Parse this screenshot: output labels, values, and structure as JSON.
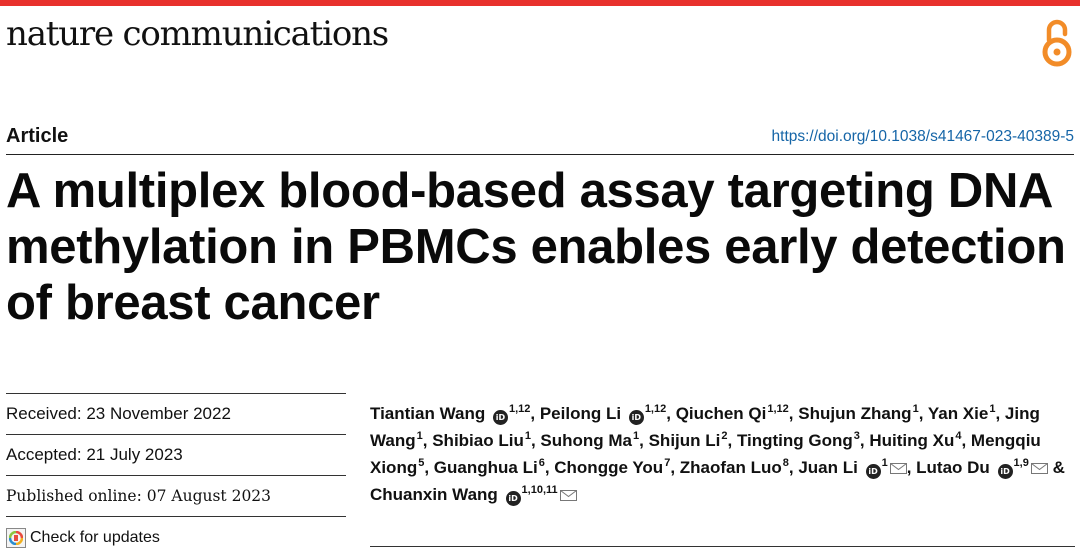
{
  "journal": {
    "name": "nature communications"
  },
  "article": {
    "type_label": "Article",
    "doi": "https://doi.org/10.1038/s41467-023-40389-5",
    "title": "A multiplex blood-based assay targeting DNA methylation in PBMCs enables early detection of breast cancer"
  },
  "dates": {
    "received": "Received: 23 November 2022",
    "accepted": "Accepted: 21 July 2023",
    "published": "Published online: 07 August 2023"
  },
  "check_updates": {
    "label": "Check for updates"
  },
  "icons": {
    "open_access": "open-access-icon",
    "orcid": "orcid-icon",
    "mail": "mail-icon"
  },
  "colors": {
    "accent_bar": "#e8312c",
    "open_access": "#f28c28",
    "doi_link": "#1565a7"
  },
  "authors": [
    {
      "name": "Tiantian Wang",
      "orcid": true,
      "sup": "1,12",
      "sep": ", "
    },
    {
      "name": "Peilong Li",
      "orcid": true,
      "sup": "1,12",
      "sep": ", "
    },
    {
      "name": "Qiuchen Qi",
      "orcid": false,
      "sup": "1,12",
      "sep": ", "
    },
    {
      "name": "Shujun Zhang",
      "orcid": false,
      "sup": "1",
      "sep": ", "
    },
    {
      "name": "Yan Xie",
      "orcid": false,
      "sup": "1",
      "sep": ", "
    },
    {
      "name": "Jing Wang",
      "orcid": false,
      "sup": "1",
      "sep": ", "
    },
    {
      "name": "Shibiao Liu",
      "orcid": false,
      "sup": "1",
      "sep": ", "
    },
    {
      "name": "Suhong Ma",
      "orcid": false,
      "sup": "1",
      "sep": ", "
    },
    {
      "name": "Shijun Li",
      "orcid": false,
      "sup": "2",
      "sep": ", "
    },
    {
      "name": "Tingting Gong",
      "orcid": false,
      "sup": "3",
      "sep": ", "
    },
    {
      "name": "Huiting Xu",
      "orcid": false,
      "sup": "4",
      "sep": ", "
    },
    {
      "name": "Mengqiu Xiong",
      "orcid": false,
      "sup": "5",
      "sep": ", "
    },
    {
      "name": "Guanghua Li",
      "orcid": false,
      "sup": "6",
      "sep": ", "
    },
    {
      "name": "Chongge You",
      "orcid": false,
      "sup": "7",
      "sep": ", "
    },
    {
      "name": "Zhaofan Luo",
      "orcid": false,
      "sup": "8",
      "sep": ", "
    },
    {
      "name": "Juan Li",
      "orcid": true,
      "sup": "1",
      "mail": true,
      "sep": ", "
    },
    {
      "name": "Lutao Du",
      "orcid": true,
      "sup": "1,9",
      "mail": true,
      "sep": " & "
    },
    {
      "name": "Chuanxin Wang",
      "orcid": true,
      "sup": "1,10,11",
      "mail": true,
      "sep": ""
    }
  ]
}
